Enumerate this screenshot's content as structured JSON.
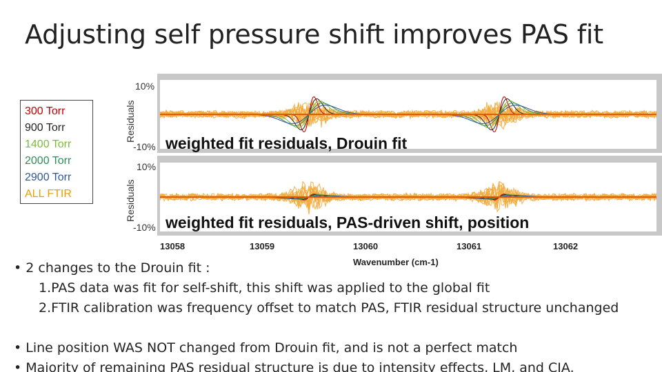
{
  "title": "Adjusting self pressure shift improves PAS fit",
  "legend": [
    {
      "label": "300 Torr",
      "color": "#c00000"
    },
    {
      "label": "900 Torr",
      "color": "#222222"
    },
    {
      "label": "1400 Torr",
      "color": "#7cba3c"
    },
    {
      "label": "2000 Torr",
      "color": "#2e8b57"
    },
    {
      "label": "2900 Torr",
      "color": "#2f5597"
    },
    {
      "label": "ALL FTIR",
      "color": "#e8a000"
    }
  ],
  "colors": {
    "ftir": "#f2a93b",
    "fit_line": "#e05a00",
    "panel_frame": "#c8c8c8"
  },
  "panels": {
    "top": {
      "ylabel": "Residuals",
      "ymax_label": "10%",
      "ymin_label": "-10%",
      "label": "weighted fit residuals, Drouin fit"
    },
    "bottom": {
      "ylabel": "Residuals",
      "ymax_label": "10%",
      "ymin_label": "-10%",
      "label": "weighted fit residuals, PAS-driven shift, position"
    }
  },
  "xaxis": {
    "ticks": [
      "13058",
      "13059",
      "13060",
      "13061",
      "13062"
    ],
    "label": "Wavenumber (cm-1)"
  },
  "bullets": {
    "b1": "• 2 changes to the Drouin fit :",
    "s1": "1.PAS data was fit for self-shift, this shift was applied to the global fit",
    "s2": "2.FTIR calibration was frequency offset to match PAS, FTIR residual structure unchanged",
    "b2": "• Line position WAS NOT changed from Drouin fit, and is not a perfect match",
    "b3": "• Majority of remaining PAS residual structure is due to intensity effects, LM, and CIA."
  }
}
